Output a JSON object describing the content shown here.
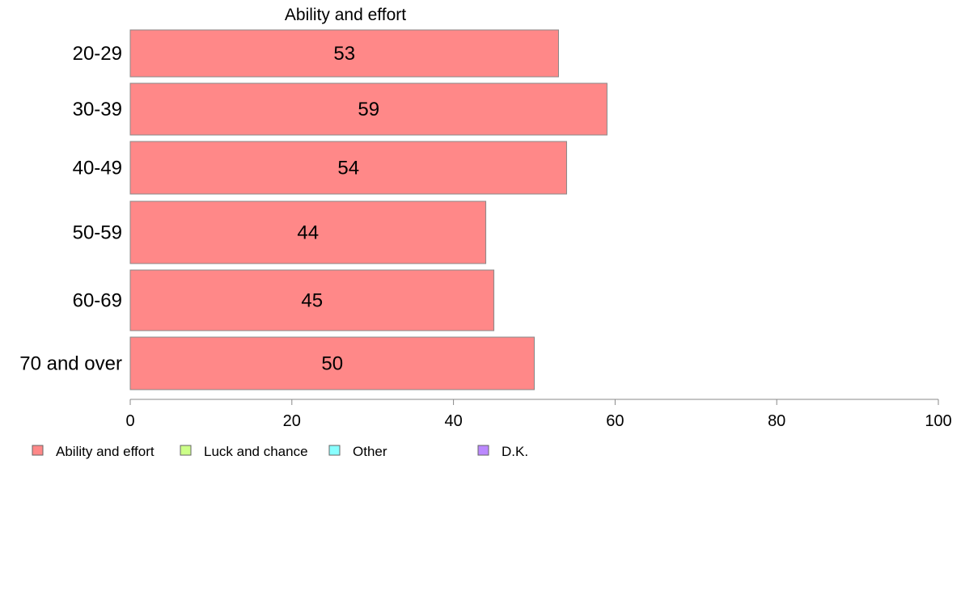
{
  "chart_data": {
    "type": "bar",
    "orientation": "horizontal",
    "title": "Ability and effort",
    "xlabel": "",
    "ylabel": "",
    "categories": [
      "20-29",
      "30-39",
      "40-49",
      "50-59",
      "60-69",
      "70 and over"
    ],
    "series": [
      {
        "name": "Ability and effort",
        "values": [
          53,
          59,
          54,
          44,
          45,
          50
        ],
        "color": "#FF8888"
      }
    ],
    "xlim": [
      0,
      100
    ],
    "xticks": [
      0,
      20,
      40,
      60,
      80,
      100
    ],
    "grid": false,
    "legend_position": "bottom",
    "legend": [
      {
        "label": "Ability and effort",
        "color": "#FF8888"
      },
      {
        "label": "Luck and chance",
        "color": "#CCFF88"
      },
      {
        "label": "Other",
        "color": "#88FFFF"
      },
      {
        "label": "D.K.",
        "color": "#BB88FF"
      }
    ]
  }
}
